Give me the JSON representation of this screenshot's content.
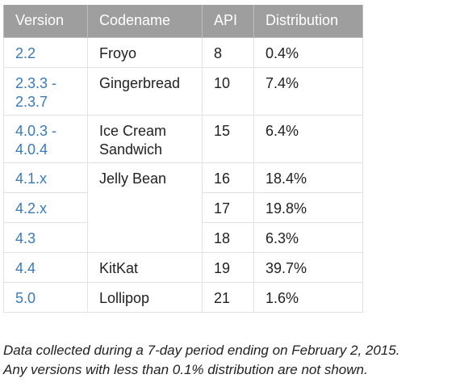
{
  "table": {
    "headers": [
      "Version",
      "Codename",
      "API",
      "Distribution"
    ],
    "rows": [
      {
        "version": "2.2",
        "codename": "Froyo",
        "api": "8",
        "distribution": "0.4%"
      },
      {
        "version": "2.3.3 - 2.3.7",
        "codename": "Gingerbread",
        "api": "10",
        "distribution": "7.4%"
      },
      {
        "version": "4.0.3 - 4.0.4",
        "codename": "Ice Cream Sandwich",
        "api": "15",
        "distribution": "6.4%"
      },
      {
        "version": "4.1.x",
        "codename": "Jelly Bean",
        "api": "16",
        "distribution": "18.4%"
      },
      {
        "version": "4.2.x",
        "codename": "",
        "api": "17",
        "distribution": "19.8%"
      },
      {
        "version": "4.3",
        "codename": "",
        "api": "18",
        "distribution": "6.3%"
      },
      {
        "version": "4.4",
        "codename": "KitKat",
        "api": "19",
        "distribution": "39.7%"
      },
      {
        "version": "5.0",
        "codename": "Lollipop",
        "api": "21",
        "distribution": "1.6%"
      }
    ]
  },
  "note": {
    "line1": "Data collected during a 7-day period ending on February 2, 2015.",
    "line2": "Any versions with less than 0.1% distribution are not shown."
  }
}
